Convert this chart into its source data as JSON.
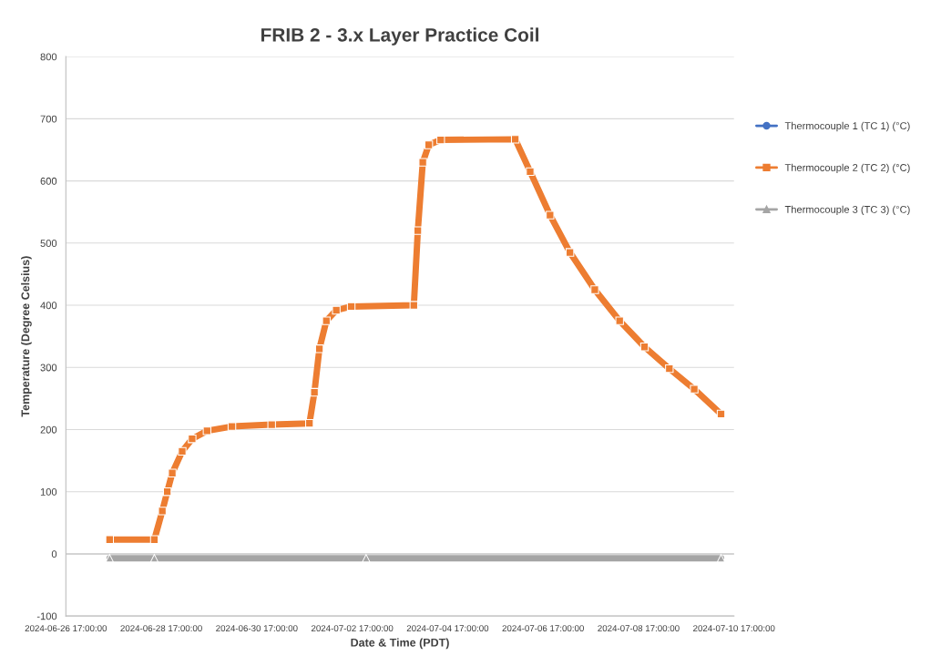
{
  "chart_data": {
    "type": "line",
    "title": "FRIB 2 - 3.x Layer Practice Coil",
    "xlabel": "Date & Time (PDT)",
    "ylabel": "Temperature (Degree Celsius)",
    "xlim": [
      "2024-06-26T17:00",
      "2024-07-10T17:00"
    ],
    "xticks": [
      {
        "value": "2024-06-26T17:00",
        "label": "2024-06-26 17:00:00"
      },
      {
        "value": "2024-06-28T17:00",
        "label": "2024-06-28 17:00:00"
      },
      {
        "value": "2024-06-30T17:00",
        "label": "2024-06-30 17:00:00"
      },
      {
        "value": "2024-07-02T17:00",
        "label": "2024-07-02 17:00:00"
      },
      {
        "value": "2024-07-04T17:00",
        "label": "2024-07-04 17:00:00"
      },
      {
        "value": "2024-07-06T17:00",
        "label": "2024-07-06 17:00:00"
      },
      {
        "value": "2024-07-08T17:00",
        "label": "2024-07-08 17:00:00"
      },
      {
        "value": "2024-07-10T17:00",
        "label": "2024-07-10 17:00:00"
      }
    ],
    "ylim": [
      -100,
      800
    ],
    "yticks": [
      -100,
      0,
      100,
      200,
      300,
      400,
      500,
      600,
      700,
      800
    ],
    "grid": "y",
    "legend": "right",
    "series": [
      {
        "name": "Thermocouple 1 (TC 1) (°C)",
        "color": "#4472c4",
        "marker": "circle"
      },
      {
        "name": "Thermocouple 2 (TC 2) (°C)",
        "color": "#ed7d31",
        "marker": "square",
        "x": [
          "2024-06-27T15:00",
          "2024-06-28T13:30",
          "2024-06-28T17:30",
          "2024-06-28T20:00",
          "2024-06-28T22:30",
          "2024-06-29T03:30",
          "2024-06-29T08:30",
          "2024-06-29T16:00",
          "2024-06-30T04:30",
          "2024-07-01T00:30",
          "2024-07-01T19:30",
          "2024-07-01T22:00",
          "2024-07-02T00:30",
          "2024-07-02T04:00",
          "2024-07-02T09:00",
          "2024-07-02T16:30",
          "2024-07-04T00:00",
          "2024-07-04T02:00",
          "2024-07-04T04:30",
          "2024-07-04T07:30",
          "2024-07-04T13:30",
          "2024-07-06T03:00",
          "2024-07-06T10:30",
          "2024-07-06T20:30",
          "2024-07-07T06:30",
          "2024-07-07T19:00",
          "2024-07-08T07:30",
          "2024-07-08T20:00",
          "2024-07-09T08:30",
          "2024-07-09T21:00",
          "2024-07-10T10:30"
        ],
        "values": [
          23,
          23,
          69,
          100,
          130,
          165,
          185,
          198,
          205,
          208,
          210,
          260,
          330,
          375,
          392,
          398,
          400,
          520,
          630,
          658,
          666,
          667,
          615,
          545,
          485,
          425,
          375,
          333,
          298,
          265,
          225
        ]
      },
      {
        "name": "Thermocouple 3 (TC 3) (°C)",
        "color": "#a5a5a5",
        "marker": "triangle",
        "x": [
          "2024-06-27T15:00",
          "2024-06-28T13:30",
          "2024-07-03T00:00",
          "2024-07-10T10:30"
        ],
        "values": [
          -7,
          -7,
          -7,
          -7
        ]
      }
    ]
  }
}
